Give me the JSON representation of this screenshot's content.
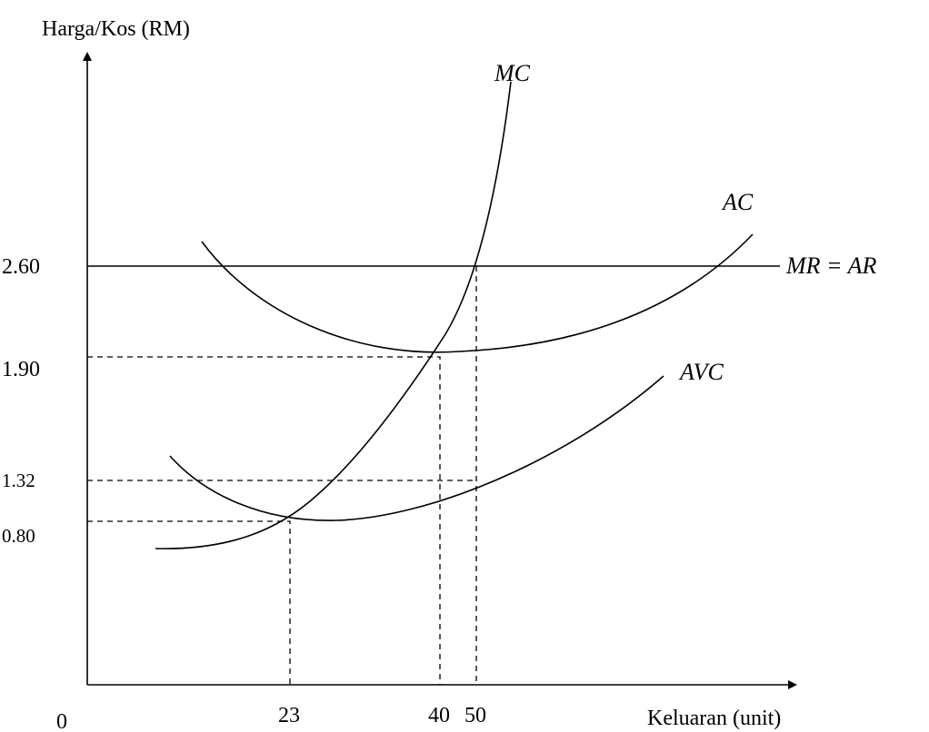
{
  "figure": {
    "y_axis_label": "Harga/Kos (RM)",
    "x_axis_label": "Keluaran (unit)",
    "origin_label": "0",
    "y_ticks": [
      "2.60",
      "1.90",
      "1.32",
      "0.80"
    ],
    "x_ticks": [
      "23",
      "40",
      "50"
    ],
    "curves": {
      "mc": "MC",
      "ac": "AC",
      "avc": "AVC",
      "mr_ar": "MR = AR"
    }
  }
}
